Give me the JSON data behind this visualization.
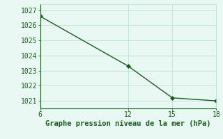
{
  "x": [
    6,
    12,
    15,
    18
  ],
  "y": [
    1026.6,
    1023.3,
    1021.2,
    1021.0
  ],
  "xlim": [
    6,
    18
  ],
  "ylim": [
    1020.5,
    1027.4
  ],
  "xticks": [
    6,
    12,
    15,
    18
  ],
  "yticks": [
    1021,
    1022,
    1023,
    1024,
    1025,
    1026,
    1027
  ],
  "xlabel": "Graphe pression niveau de la mer (hPa)",
  "line_color": "#1a5c1a",
  "marker_color": "#1a5c1a",
  "bg_color": "#e8f8f2",
  "grid_color": "#b8ddd0",
  "tick_label_color": "#1a5c1a",
  "xlabel_color": "#1a5c1a",
  "marker_size": 3,
  "line_width": 1.0,
  "xlabel_fontsize": 7.5,
  "tick_fontsize": 7
}
